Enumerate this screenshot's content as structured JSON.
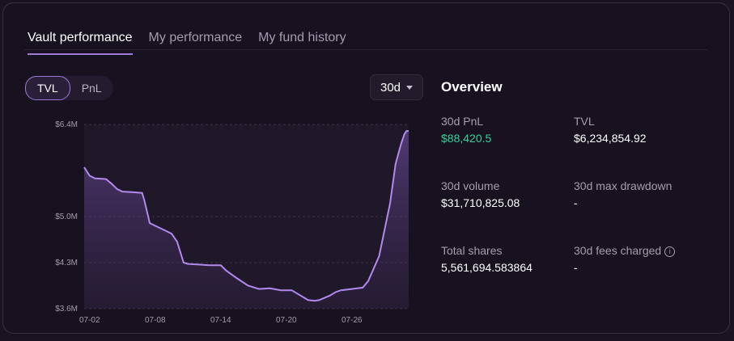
{
  "tabs": [
    {
      "label": "Vault performance"
    },
    {
      "label": "My performance"
    },
    {
      "label": "My fund history"
    }
  ],
  "toggle": {
    "tvl": "TVL",
    "pnl": "PnL"
  },
  "range": {
    "value": "30d"
  },
  "overview": {
    "title": "Overview",
    "stats": [
      {
        "label": "30d PnL",
        "value": "$88,420.5"
      },
      {
        "label": "TVL",
        "value": "$6,234,854.92"
      },
      {
        "label": "30d volume",
        "value": "$31,710,825.08"
      },
      {
        "label": "30d max drawdown",
        "value": "-"
      },
      {
        "label": "Total shares",
        "value": "5,561,694.583864"
      },
      {
        "label": "30d fees charged",
        "value": "-"
      }
    ]
  },
  "colors": {
    "accent": "#a77de0",
    "positive": "#34d399"
  },
  "chart_data": {
    "type": "area",
    "ylabel": "",
    "xlabel": "",
    "y_tick_labels": [
      "$6.4M",
      "$5.0M",
      "$4.3M",
      "$3.6M"
    ],
    "y_ticks": [
      6.4,
      5.0,
      4.3,
      3.6
    ],
    "ylim": [
      3.6,
      6.4
    ],
    "x_tick_labels": [
      "07-02",
      "07-08",
      "07-14",
      "07-20",
      "07-26"
    ],
    "x_tick_days": [
      2,
      8,
      14,
      20,
      26
    ],
    "xlim": [
      1.5,
      31.2
    ],
    "grid": true,
    "series": [
      {
        "x": [
          1.5,
          2.0,
          2.5,
          3.5,
          4.0,
          4.5,
          5.0,
          6.0,
          6.8,
          7.0,
          7.5,
          8.0,
          9.0,
          9.5,
          10.0,
          10.6,
          11.0,
          12.0,
          13.0,
          14.0,
          14.5,
          15.5,
          16.5,
          17.5,
          18.5,
          19.5,
          20.5,
          21.0,
          22.0,
          22.6,
          23.0,
          24.0,
          24.5,
          25.0,
          26.0,
          27.0,
          27.5,
          28.5,
          29.5,
          30.0,
          30.5,
          30.8,
          31.0,
          31.2
        ],
        "y": [
          5.75,
          5.62,
          5.58,
          5.57,
          5.5,
          5.42,
          5.38,
          5.37,
          5.36,
          5.25,
          4.9,
          4.86,
          4.78,
          4.74,
          4.62,
          4.3,
          4.28,
          4.27,
          4.26,
          4.26,
          4.18,
          4.06,
          3.95,
          3.9,
          3.91,
          3.88,
          3.88,
          3.83,
          3.73,
          3.72,
          3.73,
          3.8,
          3.85,
          3.88,
          3.9,
          3.92,
          4.02,
          4.4,
          5.2,
          5.8,
          6.1,
          6.25,
          6.3,
          6.3
        ]
      }
    ]
  }
}
